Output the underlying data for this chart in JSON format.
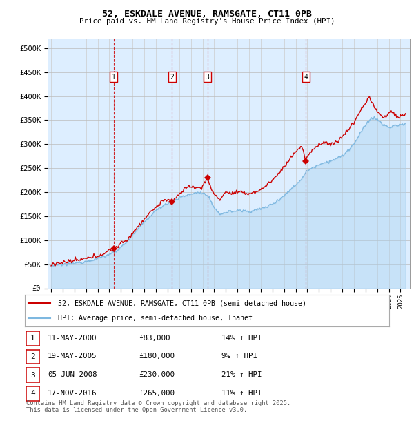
{
  "title": "52, ESKDALE AVENUE, RAMSGATE, CT11 0PB",
  "subtitle": "Price paid vs. HM Land Registry's House Price Index (HPI)",
  "ylabel_ticks": [
    "£0",
    "£50K",
    "£100K",
    "£150K",
    "£200K",
    "£250K",
    "£300K",
    "£350K",
    "£400K",
    "£450K",
    "£500K"
  ],
  "ytick_values": [
    0,
    50000,
    100000,
    150000,
    200000,
    250000,
    300000,
    350000,
    400000,
    450000,
    500000
  ],
  "ylim": [
    0,
    520000
  ],
  "xlim_start": 1994.7,
  "xlim_end": 2025.8,
  "hpi_color": "#7eb8e0",
  "hpi_fill": "#cce0f0",
  "price_color": "#cc0000",
  "legend_label_price": "52, ESKDALE AVENUE, RAMSGATE, CT11 0PB (semi-detached house)",
  "legend_label_hpi": "HPI: Average price, semi-detached house, Thanet",
  "transactions": [
    {
      "num": 1,
      "date": "11-MAY-2000",
      "price": 83000,
      "hpi_pct": "14%",
      "year": 2000.37
    },
    {
      "num": 2,
      "date": "19-MAY-2005",
      "price": 180000,
      "hpi_pct": "9%",
      "year": 2005.38
    },
    {
      "num": 3,
      "date": "05-JUN-2008",
      "price": 230000,
      "hpi_pct": "21%",
      "year": 2008.43
    },
    {
      "num": 4,
      "date": "17-NOV-2016",
      "price": 265000,
      "hpi_pct": "11%",
      "year": 2016.88
    }
  ],
  "footer": "Contains HM Land Registry data © Crown copyright and database right 2025.\nThis data is licensed under the Open Government Licence v3.0."
}
